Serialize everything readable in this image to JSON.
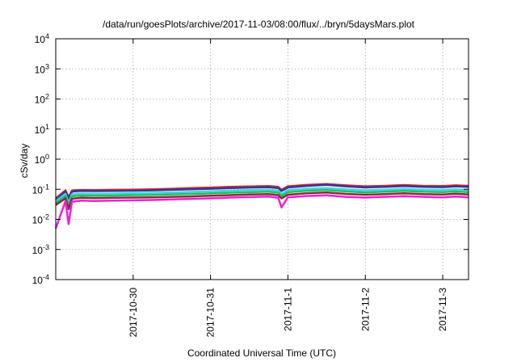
{
  "chart_data": {
    "type": "line",
    "title": "/data/run/goesPlots/archive/2017-11-03/08:00/flux/../bryn/5daysMars.plot",
    "xlabel": "Coordinated Universal Time (UTC)",
    "ylabel": "cSv/day",
    "y_scale": "log",
    "ylim": [
      0.0001,
      10000
    ],
    "xlim": [
      "2017-10-29T00:00",
      "2017-11-03T08:00"
    ],
    "grid": true,
    "legend": "none",
    "y_ticks": [
      {
        "value": 0.0001,
        "base": "10",
        "exp": "-4"
      },
      {
        "value": 0.001,
        "base": "10",
        "exp": "-3"
      },
      {
        "value": 0.01,
        "base": "10",
        "exp": "-2"
      },
      {
        "value": 0.1,
        "base": "10",
        "exp": "-1"
      },
      {
        "value": 1,
        "base": "10",
        "exp": "0"
      },
      {
        "value": 10,
        "base": "10",
        "exp": "1"
      },
      {
        "value": 100,
        "base": "10",
        "exp": "2"
      },
      {
        "value": 1000,
        "base": "10",
        "exp": "3"
      },
      {
        "value": 10000,
        "base": "10",
        "exp": "4"
      }
    ],
    "x_ticks": [
      {
        "value": "2017-10-30T00:00",
        "label": "2017-10-30"
      },
      {
        "value": "2017-10-31T00:00",
        "label": "2017-10-31"
      },
      {
        "value": "2017-11-01T00:00",
        "label": "2017-11-1"
      },
      {
        "value": "2017-11-02T00:00",
        "label": "2017-11-2"
      },
      {
        "value": "2017-11-03T00:00",
        "label": "2017-11-3"
      }
    ],
    "x": [
      "2017-10-29T00:00",
      "2017-10-29T03:00",
      "2017-10-29T04:00",
      "2017-10-29T05:00",
      "2017-10-29T06:00",
      "2017-10-29T07:00",
      "2017-10-29T08:00",
      "2017-10-29T12:00",
      "2017-10-29T18:00",
      "2017-10-30T00:00",
      "2017-10-30T06:00",
      "2017-10-30T12:00",
      "2017-10-30T18:00",
      "2017-10-31T00:00",
      "2017-10-31T06:00",
      "2017-10-31T12:00",
      "2017-10-31T18:00",
      "2017-10-31T21:00",
      "2017-10-31T22:00",
      "2017-11-01T00:00",
      "2017-11-01T06:00",
      "2017-11-01T12:00",
      "2017-11-01T18:00",
      "2017-11-02T00:00",
      "2017-11-02T06:00",
      "2017-11-02T12:00",
      "2017-11-02T18:00",
      "2017-11-03T00:00",
      "2017-11-03T04:00",
      "2017-11-03T08:00"
    ],
    "series": [
      {
        "color": "#e8202a",
        "values": [
          0.05,
          0.092,
          0.055,
          0.09,
          0.093,
          0.094,
          0.095,
          0.094,
          0.096,
          0.097,
          0.1,
          0.104,
          0.11,
          0.114,
          0.12,
          0.124,
          0.128,
          0.12,
          0.096,
          0.125,
          0.14,
          0.15,
          0.135,
          0.125,
          0.13,
          0.138,
          0.13,
          0.128,
          0.135,
          0.13
        ]
      },
      {
        "color": "#283c9c",
        "values": [
          0.045,
          0.085,
          0.048,
          0.083,
          0.086,
          0.087,
          0.088,
          0.087,
          0.088,
          0.09,
          0.092,
          0.096,
          0.1,
          0.104,
          0.11,
          0.114,
          0.118,
          0.11,
          0.088,
          0.115,
          0.13,
          0.14,
          0.125,
          0.115,
          0.12,
          0.128,
          0.12,
          0.118,
          0.125,
          0.12
        ]
      },
      {
        "color": "#48d0e8",
        "values": [
          0.04,
          0.07,
          0.035,
          0.068,
          0.07,
          0.071,
          0.072,
          0.071,
          0.072,
          0.074,
          0.076,
          0.079,
          0.082,
          0.086,
          0.09,
          0.094,
          0.097,
          0.09,
          0.07,
          0.094,
          0.105,
          0.11,
          0.1,
          0.092,
          0.097,
          0.103,
          0.097,
          0.095,
          0.1,
          0.095
        ]
      },
      {
        "color": "#20c060",
        "values": [
          0.035,
          0.06,
          0.03,
          0.058,
          0.06,
          0.061,
          0.062,
          0.061,
          0.062,
          0.064,
          0.065,
          0.068,
          0.07,
          0.073,
          0.077,
          0.08,
          0.083,
          0.077,
          0.06,
          0.08,
          0.09,
          0.094,
          0.085,
          0.079,
          0.083,
          0.088,
          0.083,
          0.081,
          0.085,
          0.08
        ]
      },
      {
        "color": "#8a2a3a",
        "values": [
          0.03,
          0.05,
          0.022,
          0.048,
          0.05,
          0.051,
          0.052,
          0.051,
          0.052,
          0.053,
          0.054,
          0.056,
          0.058,
          0.061,
          0.064,
          0.067,
          0.069,
          0.064,
          0.05,
          0.066,
          0.074,
          0.078,
          0.07,
          0.066,
          0.069,
          0.073,
          0.069,
          0.067,
          0.071,
          0.067
        ]
      },
      {
        "color": "#ee20d8",
        "values": [
          0.005,
          0.04,
          0.007,
          0.038,
          0.04,
          0.041,
          0.042,
          0.041,
          0.042,
          0.043,
          0.044,
          0.046,
          0.048,
          0.05,
          0.053,
          0.055,
          0.057,
          0.052,
          0.025,
          0.054,
          0.06,
          0.063,
          0.056,
          0.053,
          0.056,
          0.059,
          0.056,
          0.054,
          0.057,
          0.054
        ]
      }
    ]
  }
}
